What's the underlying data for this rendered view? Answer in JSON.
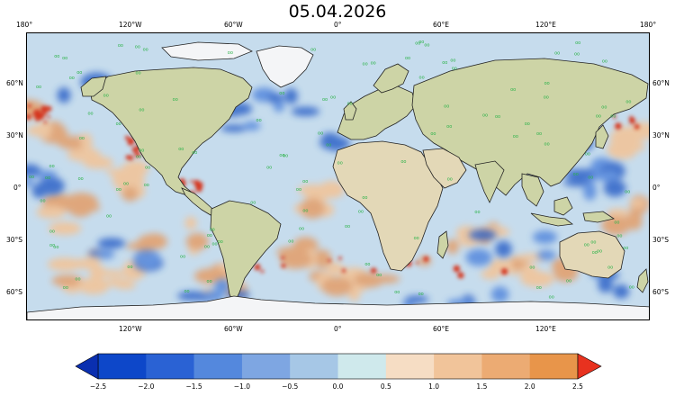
{
  "title": "05.04.2026",
  "lon_ticks": [
    "180°",
    "120°W",
    "60°W",
    "0°",
    "60°E",
    "120°E",
    "180°"
  ],
  "lon_ticks_bottom": [
    "120°W",
    "60°W",
    "0°",
    "60°E",
    "120°E"
  ],
  "lat_ticks": [
    "60°N",
    "30°N",
    "0°",
    "30°S",
    "60°S"
  ],
  "colorbar": {
    "labels": [
      "−2.5",
      "−2.0",
      "−1.5",
      "−1.0",
      "−0.5",
      "0.0",
      "0.5",
      "1.0",
      "1.5",
      "2.0",
      "2.5"
    ],
    "colors": [
      "#0d47c9",
      "#2a62d4",
      "#5488dd",
      "#7ea6e2",
      "#a6c7e6",
      "#cfe9ec",
      "#f6ddc4",
      "#f1c49a",
      "#ecab73",
      "#e8954a"
    ],
    "under_color": "#0a2fb0",
    "over_color": "#e8321f"
  },
  "colors": {
    "land": "#cdd4a6",
    "land_desert": "#e3d8b7",
    "ice": "#f4f5f7",
    "ocean_base": "#c6dced",
    "cold": "#2f64c8",
    "warm": "#e2a170",
    "hot": "#d5361f",
    "marker": "#2db34a"
  }
}
